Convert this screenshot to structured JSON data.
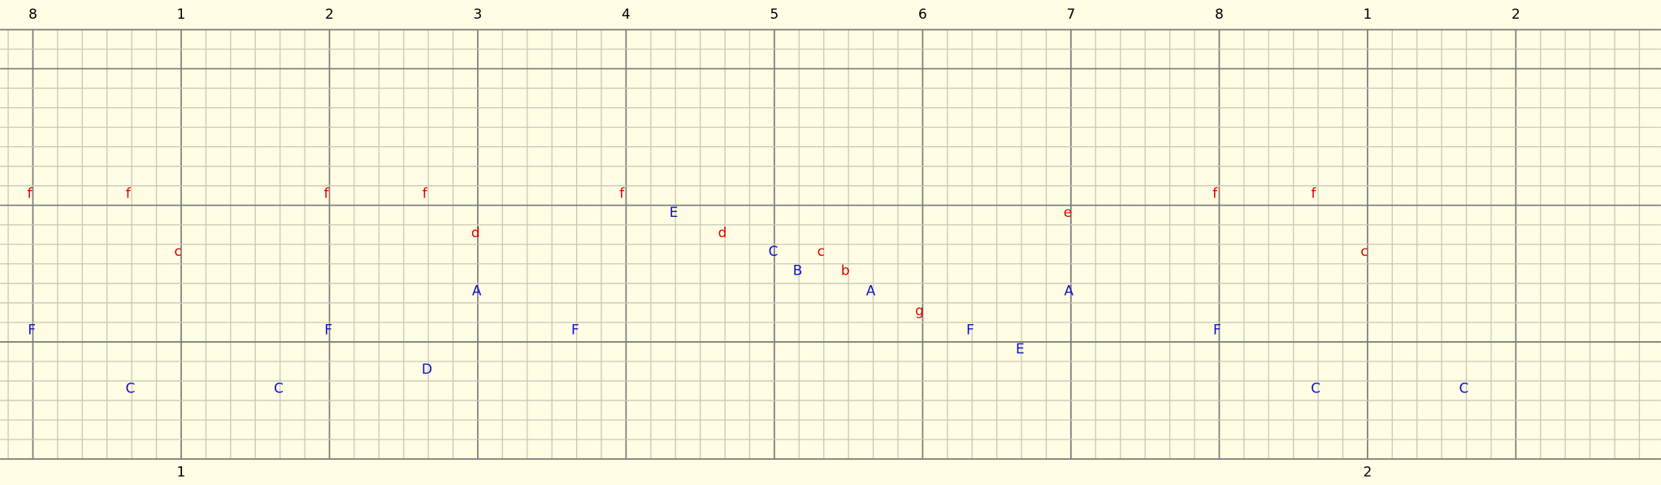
{
  "top_labels": [
    "8",
    "1",
    "2",
    "3",
    "4",
    "5",
    "6",
    "7",
    "8",
    "1",
    "2"
  ],
  "bottom_labels": [
    "1",
    "2"
  ],
  "notes": [
    "f",
    "f",
    "f",
    "f",
    "f",
    "f",
    "f",
    "E",
    "e",
    "d",
    "d",
    "c",
    "C",
    "c",
    "c",
    "B",
    "b",
    "A",
    "A",
    "A",
    "g",
    "F",
    "F",
    "F",
    "F",
    "F",
    "E",
    "D",
    "C",
    "C",
    "C",
    "C"
  ]
}
